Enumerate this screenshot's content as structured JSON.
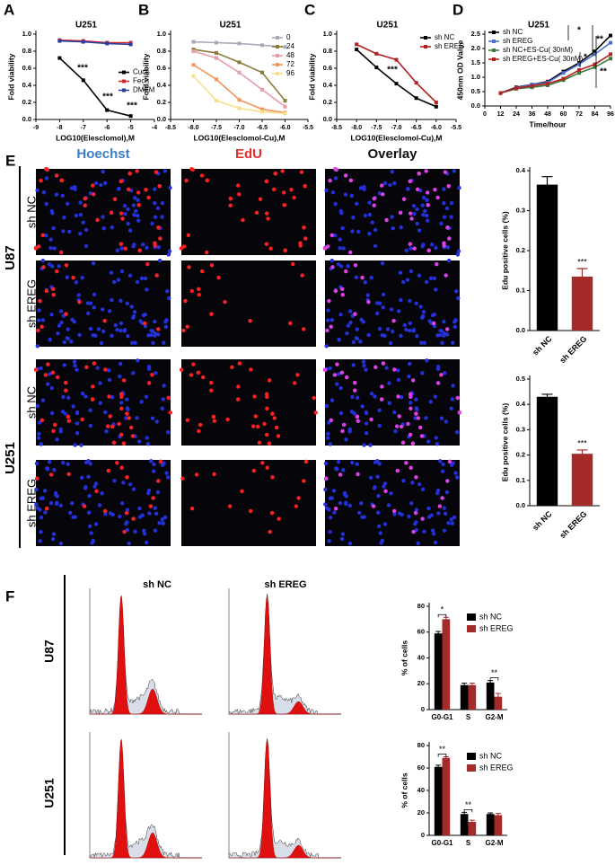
{
  "chart_data": [
    {
      "type": "line",
      "panel": "A",
      "title": "U251",
      "x_label": "LOG10(Elesclomol),M",
      "y_label": "Fold viability",
      "x": [
        -8,
        -7,
        -6,
        -5
      ],
      "xlim": [
        -9,
        -4
      ],
      "xticks": [
        -9,
        -8,
        -7,
        -6,
        -5,
        -4
      ],
      "ylim": [
        0,
        1.0
      ],
      "yticks": [
        {
          "value": 0,
          "label": "0.0"
        },
        0.2,
        0.4,
        0.6,
        0.8,
        {
          "value": 1.0,
          "label": "1.0"
        }
      ],
      "legend": "center right",
      "series": [
        {
          "name": "Cucl₂",
          "color": "#000000",
          "values": [
            0.72,
            0.46,
            0.11,
            0.04
          ]
        },
        {
          "name": "Fecl₃",
          "color": "#d62728",
          "values": [
            0.93,
            0.92,
            0.9,
            0.9
          ]
        },
        {
          "name": "DMEM",
          "color": "#2a3f9d",
          "values": [
            0.92,
            0.91,
            0.89,
            0.88
          ]
        }
      ],
      "annotations": [
        "***",
        "***",
        "***"
      ]
    },
    {
      "type": "line",
      "panel": "B",
      "title": "U251",
      "x_label": "LOG10(Elesclomol-Cu),M",
      "y_label": "Fold viability",
      "x": [
        -8,
        -7.5,
        -7,
        -6.5,
        -6
      ],
      "xlim": [
        -8.5,
        -5.5
      ],
      "xticks": [
        -8.5,
        {
          "value": -8,
          "label": "-8.0"
        },
        -7.5,
        {
          "value": -7,
          "label": "-7.0"
        },
        -6.5,
        {
          "value": -6,
          "label": "-6.0"
        },
        -5.5
      ],
      "ylim": [
        0,
        1.0
      ],
      "yticks": [
        {
          "value": 0,
          "label": "0.0"
        },
        0.2,
        0.4,
        0.6,
        0.8,
        {
          "value": 1.0,
          "label": "1.0"
        }
      ],
      "legend": "upper right",
      "series": [
        {
          "name": "0",
          "color": "#a9a9b8",
          "values": [
            0.91,
            0.9,
            0.89,
            0.87,
            0.85
          ]
        },
        {
          "name": "24",
          "color": "#8b7b3a",
          "values": [
            0.82,
            0.78,
            0.67,
            0.55,
            0.22
          ]
        },
        {
          "name": "48",
          "color": "#e89aa8",
          "values": [
            0.8,
            0.72,
            0.55,
            0.35,
            0.15
          ]
        },
        {
          "name": "72",
          "color": "#f2955a",
          "values": [
            0.64,
            0.47,
            0.23,
            0.12,
            0.08
          ]
        },
        {
          "name": "96",
          "color": "#f7e08a",
          "values": [
            0.51,
            0.22,
            0.13,
            0.09,
            0.07
          ]
        }
      ],
      "annotations": []
    },
    {
      "type": "line",
      "panel": "C",
      "title": "U251",
      "x_label": "LOG10(Elesclomol-Cu),M",
      "y_label": "Fold viability",
      "x": [
        -8,
        -7.5,
        -7,
        -6.5,
        -6
      ],
      "xlim": [
        -8.5,
        -5.5
      ],
      "xticks": [
        -8.5,
        {
          "value": -8,
          "label": "-8.0"
        },
        -7.5,
        {
          "value": -7,
          "label": "-7.0"
        },
        -6.5,
        {
          "value": -6,
          "label": "-6.0"
        },
        -5.5
      ],
      "ylim": [
        0,
        1.0
      ],
      "yticks": [
        {
          "value": 0,
          "label": "0.0"
        },
        0.2,
        0.4,
        0.6,
        0.8,
        {
          "value": 1.0,
          "label": "1.0"
        }
      ],
      "legend": "upper right",
      "series": [
        {
          "name": "sh NC",
          "color": "#000000",
          "values": [
            0.82,
            0.61,
            0.42,
            0.25,
            0.15
          ]
        },
        {
          "name": "sh EREG",
          "color": "#b22222",
          "values": [
            0.88,
            0.77,
            0.7,
            0.43,
            0.2
          ]
        }
      ],
      "annotations": [
        "***"
      ]
    },
    {
      "type": "line",
      "panel": "D",
      "title": "U251",
      "x_label": "Time/hour",
      "y_label": "450nm OD Value",
      "x": [
        12,
        24,
        36,
        48,
        60,
        72,
        84,
        96
      ],
      "xlim": [
        0,
        96
      ],
      "xticks": [
        0,
        12,
        24,
        36,
        48,
        60,
        72,
        84,
        96
      ],
      "ylim": [
        0,
        2.5
      ],
      "yticks": [
        {
          "value": 0,
          "label": "0.0"
        },
        0.5,
        {
          "value": 1.0,
          "label": "1.0"
        },
        1.5,
        {
          "value": 2.0,
          "label": "2.0"
        },
        2.5
      ],
      "legend": "upper left",
      "series": [
        {
          "name": "sh NC",
          "color": "#000000",
          "values": [
            0.45,
            0.65,
            0.75,
            0.85,
            1.2,
            1.5,
            1.9,
            2.45
          ]
        },
        {
          "name": "sh EREG",
          "color": "#4a6fd0",
          "values": [
            0.45,
            0.63,
            0.75,
            0.82,
            1.15,
            1.45,
            1.8,
            2.2
          ]
        },
        {
          "name": "sh NC+ES-Cu( 30nM)",
          "color": "#3d7a3a",
          "values": [
            0.45,
            0.6,
            0.65,
            0.72,
            0.9,
            1.15,
            1.35,
            1.65
          ]
        },
        {
          "name": "sh EREG+ES-Cu( 30nM)",
          "color": "#b22222",
          "values": [
            0.45,
            0.62,
            0.7,
            0.78,
            0.95,
            1.25,
            1.45,
            1.8
          ]
        }
      ],
      "annotations": [
        "*",
        "**",
        "*",
        "**"
      ]
    },
    {
      "type": "bar",
      "y_label": "Edu positive cells (%)",
      "categories": [
        "sh NC",
        "sh EREG"
      ],
      "values": [
        0.365,
        0.135
      ],
      "errors": [
        0.02,
        0.02
      ],
      "colors": [
        "#000000",
        "#a52a2a"
      ],
      "ylim": [
        0,
        0.4
      ],
      "yticks": [
        {
          "value": 0,
          "label": "0.0"
        },
        0.1,
        0.2,
        0.3,
        0.4
      ],
      "annotations": [
        "***"
      ]
    },
    {
      "type": "bar",
      "y_label": "Edu positive cells (%)",
      "categories": [
        "sh NC",
        "sh EREG"
      ],
      "values": [
        0.43,
        0.205
      ],
      "errors": [
        0.01,
        0.015
      ],
      "colors": [
        "#000000",
        "#a52a2a"
      ],
      "ylim": [
        0,
        0.5
      ],
      "yticks": [
        {
          "value": 0,
          "label": "0.0"
        },
        0.1,
        0.2,
        0.3,
        0.4,
        0.5
      ],
      "annotations": [
        "***"
      ]
    },
    {
      "type": "grouped_bar",
      "y_label": "% of cells",
      "categories": [
        "G0-G1",
        "S",
        "G2-M"
      ],
      "series": [
        {
          "name": "sh NC",
          "color": "#000000",
          "values": [
            59,
            19,
            21
          ],
          "errors": [
            1.5,
            1.5,
            1.5
          ]
        },
        {
          "name": "sh EREG",
          "color": "#a52a2a",
          "values": [
            70,
            19,
            10
          ],
          "errors": [
            1.5,
            1.5,
            2.5
          ]
        }
      ],
      "ylim": [
        0,
        80
      ],
      "yticks": [
        0,
        20,
        40,
        60,
        80
      ],
      "legend": "upper right",
      "annotations": [
        "*",
        "**"
      ]
    },
    {
      "type": "grouped_bar",
      "y_label": "% of cells",
      "categories": [
        "G0-G1",
        "S",
        "G2-M"
      ],
      "series": [
        {
          "name": "sh NC",
          "color": "#000000",
          "values": [
            61,
            19,
            19
          ],
          "errors": [
            1.5,
            1.5,
            1
          ]
        },
        {
          "name": "sh EREG",
          "color": "#a52a2a",
          "values": [
            69,
            12,
            18
          ],
          "errors": [
            1,
            1.5,
            1.5
          ]
        }
      ],
      "ylim": [
        0,
        80
      ],
      "yticks": [
        0,
        20,
        40,
        60,
        80
      ],
      "legend": "upper right",
      "annotations": [
        "**",
        "**"
      ]
    }
  ],
  "figure": {
    "panel_e": "E",
    "panel_f": "F",
    "edu_columns": [
      "Hoechst",
      "EdU",
      "Overlay"
    ],
    "edu_cells": [
      "U87",
      "U251"
    ],
    "edu_rows": [
      "sh NC",
      "sh EREG"
    ],
    "flow_columns": [
      "sh NC",
      "sh EREG"
    ],
    "flow_cells": [
      "U87",
      "U251"
    ]
  }
}
